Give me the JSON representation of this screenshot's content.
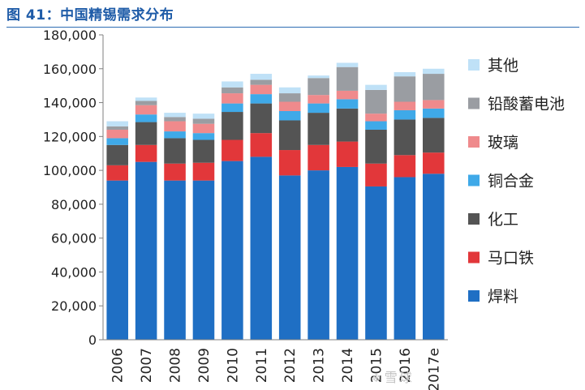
{
  "figure": {
    "title": "图 41：中国精锡需求分布"
  },
  "watermark": {
    "text": "雪球",
    "icon": "snowball-logo-icon"
  },
  "chart_data": {
    "type": "bar",
    "stacked": true,
    "categories": [
      "2006",
      "2007",
      "2008",
      "2009",
      "2010",
      "2011",
      "2012",
      "2013",
      "2014",
      "2015",
      "2016",
      "2017e"
    ],
    "ylim": [
      0,
      180000
    ],
    "yticks": [
      0,
      20000,
      40000,
      60000,
      80000,
      100000,
      120000,
      140000,
      160000,
      180000
    ],
    "ytick_labels": [
      "0",
      "20,000",
      "40,000",
      "60,000",
      "80,000",
      "100,000",
      "120,000",
      "140,000",
      "160,000",
      "180,000"
    ],
    "grid": false,
    "legend_position": "right",
    "series": [
      {
        "name": "焊料",
        "color": "#1f6fc4",
        "values": [
          94000,
          105000,
          94000,
          94000,
          105500,
          108000,
          97000,
          100000,
          102000,
          90500,
          96000,
          98000
        ]
      },
      {
        "name": "马口铁",
        "color": "#e2373a",
        "values": [
          9000,
          10000,
          10000,
          10500,
          12500,
          14000,
          15000,
          15000,
          15000,
          13500,
          13000,
          12500
        ]
      },
      {
        "name": "化工",
        "color": "#545454",
        "values": [
          12000,
          13500,
          15000,
          13500,
          16500,
          17500,
          17500,
          19000,
          19500,
          20000,
          21000,
          20500
        ]
      },
      {
        "name": "铜合金",
        "color": "#3fa9e8",
        "values": [
          4000,
          4500,
          4000,
          4000,
          5000,
          5500,
          5500,
          5500,
          5500,
          5000,
          5500,
          5500
        ]
      },
      {
        "name": "玻璃",
        "color": "#ef8a8c",
        "values": [
          5000,
          5500,
          6000,
          5500,
          6000,
          5500,
          5500,
          5000,
          5000,
          4500,
          5000,
          5000
        ]
      },
      {
        "name": "铅酸蓄电池",
        "color": "#9a9da2",
        "values": [
          2000,
          2500,
          2500,
          3000,
          3500,
          3000,
          5000,
          10000,
          14000,
          14000,
          15000,
          15500
        ]
      },
      {
        "name": "其他",
        "color": "#bfe1f7",
        "values": [
          3000,
          2000,
          2500,
          3000,
          3500,
          3500,
          3500,
          1500,
          2500,
          3000,
          2500,
          3000
        ]
      }
    ]
  }
}
